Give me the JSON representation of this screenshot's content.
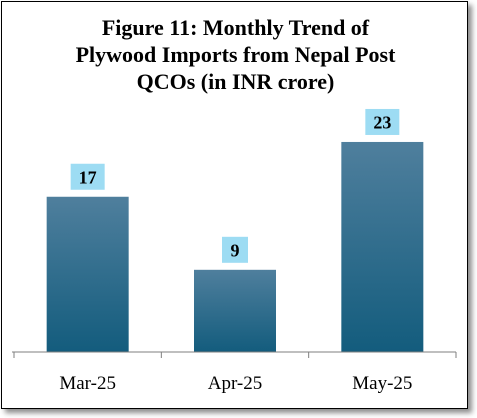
{
  "chart_data": {
    "type": "bar",
    "title": "Figure 11: Monthly Trend of Plywood Imports from Nepal Post QCOs (in INR crore)",
    "title_lines": [
      "Figure 11: Monthly Trend of",
      "Plywood Imports from Nepal Post",
      "QCOs (in INR crore)"
    ],
    "categories": [
      "Mar-25",
      "Apr-25",
      "May-25"
    ],
    "values": [
      17,
      9,
      23
    ],
    "data_labels": [
      "17",
      "9",
      "23"
    ],
    "xlabel": "",
    "ylabel": "",
    "ylim": [
      0,
      26.5
    ],
    "grid": false,
    "legend": "none",
    "colors": {
      "bar_top": "#4f7f9d",
      "bar_bottom": "#135c7d",
      "label_background": "#9ddcf3",
      "axis": "#7f7f7f"
    }
  }
}
